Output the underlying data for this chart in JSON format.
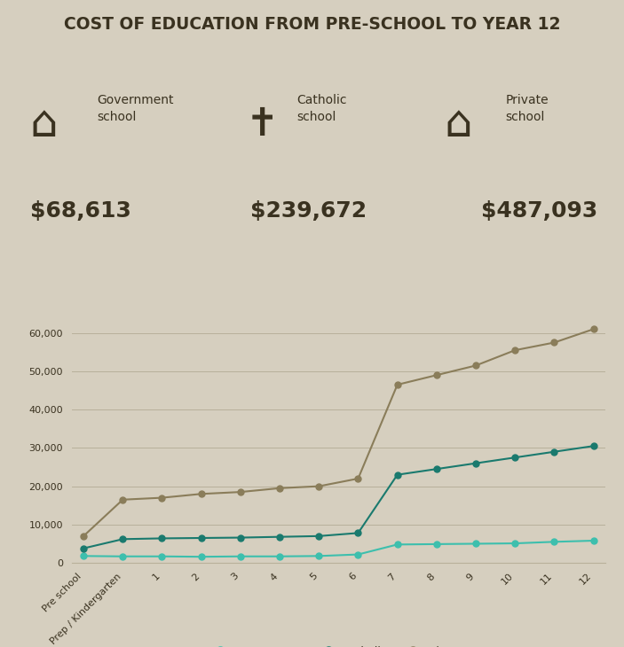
{
  "title": "COST OF EDUCATION FROM PRE-SCHOOL TO YEAR 12",
  "background_color": "#d6cfbf",
  "x_labels": [
    "Pre school",
    "Prep / Kindergarten",
    "1",
    "2",
    "3",
    "4",
    "5",
    "6",
    "7",
    "8",
    "9",
    "10",
    "11",
    "12"
  ],
  "government_data": [
    1800,
    1700,
    1700,
    1600,
    1700,
    1700,
    1800,
    2200,
    4800,
    4900,
    5000,
    5100,
    5500,
    5800
  ],
  "catholic_data": [
    3800,
    6200,
    6400,
    6500,
    6600,
    6800,
    7000,
    7800,
    23000,
    24500,
    26000,
    27500,
    29000,
    30500
  ],
  "private_data": [
    7000,
    16500,
    17000,
    18000,
    18500,
    19500,
    20000,
    22000,
    46500,
    49000,
    51500,
    55500,
    57500,
    61000
  ],
  "government_color": "#3dbfad",
  "catholic_color": "#1a7a6e",
  "private_color": "#8a7d5a",
  "gov_total": "$68,613",
  "cat_total": "$239,672",
  "priv_total": "$487,093",
  "ylim": [
    0,
    65000
  ],
  "yticks": [
    0,
    10000,
    20000,
    30000,
    40000,
    50000,
    60000
  ],
  "legend_labels": [
    "Government",
    "Catholic",
    "Private"
  ],
  "text_color": "#3a3220",
  "grid_color": "#b8b09a"
}
